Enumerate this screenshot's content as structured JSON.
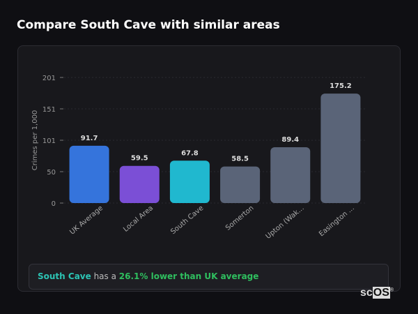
{
  "title": "Compare South Cave with similar areas",
  "chart_data": {
    "type": "bar",
    "categories": [
      "UK Average",
      "Local Area",
      "South Cave",
      "Somerton",
      "Upton (Wak...",
      "Easington ..."
    ],
    "values": [
      91.7,
      59.5,
      67.8,
      58.5,
      89.4,
      175.2
    ],
    "colors": [
      "#3574dc",
      "#7b4fd6",
      "#20b8cf",
      "#5a6478",
      "#5a6478",
      "#5a6478"
    ],
    "ylabel": "Crimes per 1,000",
    "ylim": [
      0,
      201
    ],
    "yticks": [
      "0",
      "50",
      "101",
      "151",
      "201"
    ],
    "grid": true
  },
  "summary": {
    "area": "South Cave",
    "middle": " has a ",
    "stat": "26.1% lower than UK average"
  },
  "logo": "scOS"
}
